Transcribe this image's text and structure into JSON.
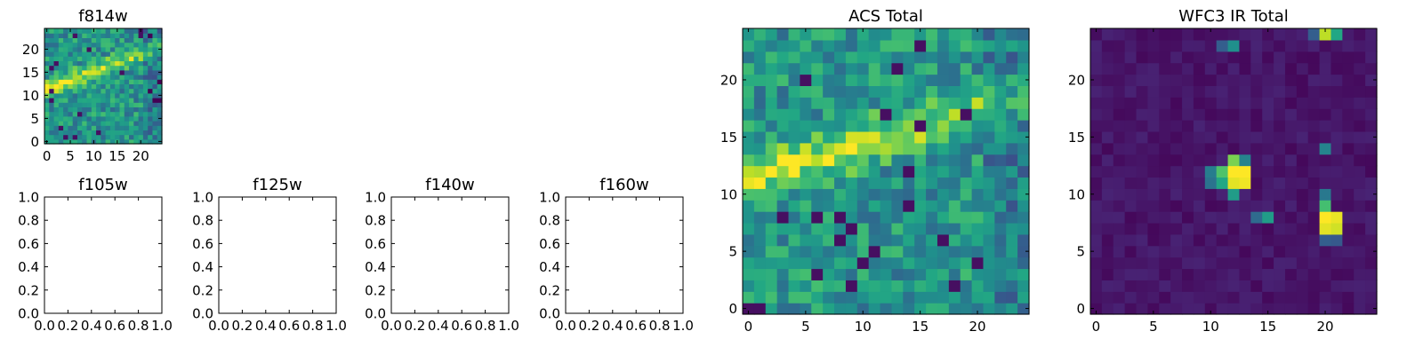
{
  "chart_data": [
    {
      "type": "heatmap",
      "title": "f814w",
      "colormap": "viridis",
      "image_shape": [
        25,
        25
      ],
      "feature": "bright diagonal streak rising from left (y≈11) to right (y≈20), over a moderate noisy background",
      "xlim": [
        -0.5,
        24.5
      ],
      "ylim": [
        -0.5,
        24.5
      ],
      "xticks": [
        0,
        5,
        10,
        15,
        20
      ],
      "yticks": [
        0,
        5,
        10,
        15,
        20
      ]
    },
    {
      "type": "empty",
      "title": "f105w",
      "xlim": [
        0,
        1
      ],
      "ylim": [
        0,
        1
      ],
      "xticks": [
        "0.0",
        "0.2",
        "0.4",
        "0.6",
        "0.8",
        "1.0"
      ],
      "yticks": [
        "0.0",
        "0.2",
        "0.4",
        "0.6",
        "0.8",
        "1.0"
      ]
    },
    {
      "type": "empty",
      "title": "f125w",
      "xlim": [
        0,
        1
      ],
      "ylim": [
        0,
        1
      ],
      "xticks": [
        "0.0",
        "0.2",
        "0.4",
        "0.6",
        "0.8",
        "1.0"
      ],
      "yticks": [
        "0.0",
        "0.2",
        "0.4",
        "0.6",
        "0.8",
        "1.0"
      ]
    },
    {
      "type": "empty",
      "title": "f140w",
      "xlim": [
        0,
        1
      ],
      "ylim": [
        0,
        1
      ],
      "xticks": [
        "0.0",
        "0.2",
        "0.4",
        "0.6",
        "0.8",
        "1.0"
      ],
      "yticks": [
        "0.0",
        "0.2",
        "0.4",
        "0.6",
        "0.8",
        "1.0"
      ]
    },
    {
      "type": "empty",
      "title": "f160w",
      "xlim": [
        0,
        1
      ],
      "ylim": [
        0,
        1
      ],
      "xticks": [
        "0.0",
        "0.2",
        "0.4",
        "0.6",
        "0.8",
        "1.0"
      ],
      "yticks": [
        "0.0",
        "0.2",
        "0.4",
        "0.6",
        "0.8",
        "1.0"
      ]
    },
    {
      "type": "heatmap",
      "title": "ACS Total",
      "colormap": "viridis",
      "image_shape": [
        25,
        25
      ],
      "feature": "bright diagonal streak rising from left (y≈11) to right (y≈18), over a moderate noisy background",
      "xlim": [
        -0.5,
        24.5
      ],
      "ylim": [
        -0.5,
        24.5
      ],
      "xticks": [
        0,
        5,
        10,
        15,
        20
      ],
      "yticks": [
        0,
        5,
        10,
        15,
        20
      ]
    },
    {
      "type": "heatmap",
      "title": "WFC3 IR Total",
      "colormap": "viridis",
      "image_shape": [
        25,
        25
      ],
      "feature": "dark background with compact bright sources near (12,12), (20,8), (20,24) and faint spots near (12,23), (15,8), (20,14)",
      "xlim": [
        -0.5,
        24.5
      ],
      "ylim": [
        -0.5,
        24.5
      ],
      "xticks": [
        0,
        5,
        10,
        15,
        20
      ],
      "yticks": [
        0,
        5,
        10,
        15,
        20
      ]
    }
  ]
}
